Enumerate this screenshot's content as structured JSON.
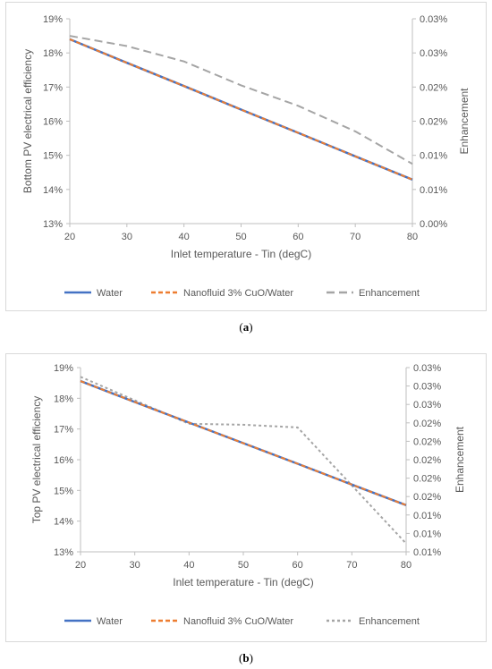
{
  "chart_data": [
    {
      "type": "line",
      "panel_label": "a",
      "xlabel": "Inlet temperature - Tin (degC)",
      "ylabel": "Bottom  PV electrical efficiency",
      "y2label": "Enhancement",
      "x_ticks": [
        "20",
        "30",
        "40",
        "50",
        "60",
        "70",
        "80"
      ],
      "y_ticks": [
        "13%",
        "14%",
        "15%",
        "16%",
        "17%",
        "18%",
        "19%"
      ],
      "y2_ticks": [
        "0.00%",
        "0.01%",
        "0.01%",
        "0.02%",
        "0.02%",
        "0.03%",
        "0.03%"
      ],
      "xlim": [
        20,
        80
      ],
      "ylim": [
        13,
        19
      ],
      "y2lim": [
        0,
        6
      ],
      "legend_position": "bottom",
      "grid": false,
      "series": [
        {
          "name": "Water",
          "axis": "left",
          "color": "#4472c4",
          "style": "solid",
          "x": [
            20,
            30,
            40,
            50,
            60,
            70,
            80
          ],
          "y": [
            18.4,
            17.71,
            17.03,
            16.34,
            15.66,
            14.97,
            14.29
          ]
        },
        {
          "name": "Nanofluid 3% CuO/Water",
          "axis": "left",
          "color": "#ed7d31",
          "style": "dash",
          "x": [
            20,
            30,
            40,
            50,
            60,
            70,
            80
          ],
          "y": [
            18.4,
            17.71,
            17.03,
            16.34,
            15.66,
            14.97,
            14.29
          ]
        },
        {
          "name": "Enhancement",
          "axis": "right",
          "color": "#a5a5a5",
          "style": "longdash",
          "x": [
            20,
            30,
            40,
            50,
            60,
            70,
            80
          ],
          "y": [
            5.5,
            5.2,
            4.75,
            4.05,
            3.45,
            2.7,
            1.75
          ]
        }
      ]
    },
    {
      "type": "line",
      "panel_label": "b",
      "xlabel": "Inlet temperature - Tin (degC)",
      "ylabel": "Top PV electrical efficiency",
      "y2label": "Enhancement",
      "x_ticks": [
        "20",
        "30",
        "40",
        "50",
        "60",
        "70",
        "80"
      ],
      "y_ticks": [
        "13%",
        "14%",
        "15%",
        "16%",
        "17%",
        "18%",
        "19%"
      ],
      "y2_ticks": [
        "0.01%",
        "0.01%",
        "0.01%",
        "0.02%",
        "0.02%",
        "0.02%",
        "0.02%",
        "0.02%",
        "0.03%",
        "0.03%",
        "0.03%"
      ],
      "xlim": [
        20,
        80
      ],
      "ylim": [
        13,
        19
      ],
      "y2lim": [
        0,
        10
      ],
      "legend_position": "bottom",
      "grid": false,
      "series": [
        {
          "name": "Water",
          "axis": "left",
          "color": "#4472c4",
          "style": "solid",
          "x": [
            20,
            30,
            40,
            50,
            60,
            70,
            80
          ],
          "y": [
            18.56,
            17.88,
            17.21,
            16.54,
            15.87,
            15.19,
            14.52
          ]
        },
        {
          "name": "Nanofluid 3% CuO/Water",
          "axis": "left",
          "color": "#ed7d31",
          "style": "dash",
          "x": [
            20,
            30,
            40,
            50,
            60,
            70,
            80
          ],
          "y": [
            18.56,
            17.88,
            17.21,
            16.54,
            15.87,
            15.19,
            14.52
          ]
        },
        {
          "name": "Enhancement",
          "axis": "right",
          "color": "#a5a5a5",
          "style": "dot",
          "x": [
            20,
            40,
            50,
            60,
            80
          ],
          "y": [
            9.5,
            6.95,
            6.9,
            6.75,
            0.45
          ]
        }
      ]
    }
  ],
  "captions": {
    "a": "a",
    "b": "b"
  }
}
